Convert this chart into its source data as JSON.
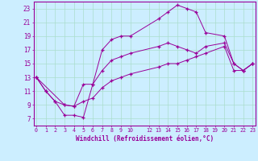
{
  "xlabel": "Windchill (Refroidissement éolien,°C)",
  "bg_color": "#cceeff",
  "line_color": "#990099",
  "grid_color": "#aaddcc",
  "ylim": [
    6,
    24
  ],
  "xlim": [
    -0.3,
    23.3
  ],
  "yticks": [
    7,
    9,
    11,
    13,
    15,
    17,
    19,
    21,
    23
  ],
  "xtick_positions": [
    0,
    1,
    2,
    3,
    4,
    5,
    6,
    7,
    8,
    9,
    10,
    12,
    13,
    14,
    15,
    16,
    17,
    18,
    19,
    20,
    21,
    22,
    23
  ],
  "xtick_labels": [
    "0",
    "1",
    "2",
    "3",
    "4",
    "5",
    "6",
    "7",
    "8",
    "9",
    "10",
    "12",
    "13",
    "14",
    "15",
    "16",
    "17",
    "18",
    "19",
    "20",
    "21",
    "22",
    "23"
  ],
  "series1": [
    [
      0,
      13
    ],
    [
      1,
      11
    ],
    [
      2,
      9.5
    ],
    [
      3,
      7.5
    ],
    [
      4,
      7.5
    ],
    [
      5,
      7.2
    ],
    [
      6,
      12
    ],
    [
      7,
      17
    ],
    [
      8,
      18.5
    ],
    [
      9,
      19
    ],
    [
      10,
      19
    ],
    [
      13,
      21.5
    ],
    [
      14,
      22.5
    ],
    [
      15,
      23.5
    ],
    [
      16,
      23
    ],
    [
      17,
      22.5
    ],
    [
      18,
      19.5
    ],
    [
      20,
      19
    ],
    [
      21,
      15
    ],
    [
      22,
      14
    ],
    [
      23,
      15
    ]
  ],
  "series2": [
    [
      0,
      13
    ],
    [
      1,
      11
    ],
    [
      2,
      9.5
    ],
    [
      3,
      9
    ],
    [
      4,
      8.8
    ],
    [
      5,
      12
    ],
    [
      6,
      12
    ],
    [
      7,
      14
    ],
    [
      8,
      15.5
    ],
    [
      9,
      16
    ],
    [
      10,
      16.5
    ],
    [
      13,
      17.5
    ],
    [
      14,
      18
    ],
    [
      15,
      17.5
    ],
    [
      16,
      17
    ],
    [
      17,
      16.5
    ],
    [
      18,
      17.5
    ],
    [
      20,
      18
    ],
    [
      21,
      15
    ],
    [
      22,
      14
    ],
    [
      23,
      15
    ]
  ],
  "series3": [
    [
      0,
      13
    ],
    [
      3,
      9
    ],
    [
      4,
      8.8
    ],
    [
      5,
      9.5
    ],
    [
      6,
      10
    ],
    [
      7,
      11.5
    ],
    [
      8,
      12.5
    ],
    [
      9,
      13
    ],
    [
      10,
      13.5
    ],
    [
      13,
      14.5
    ],
    [
      14,
      15
    ],
    [
      15,
      15
    ],
    [
      16,
      15.5
    ],
    [
      17,
      16
    ],
    [
      18,
      16.5
    ],
    [
      20,
      17.5
    ],
    [
      21,
      14
    ],
    [
      22,
      14
    ],
    [
      23,
      15
    ]
  ]
}
